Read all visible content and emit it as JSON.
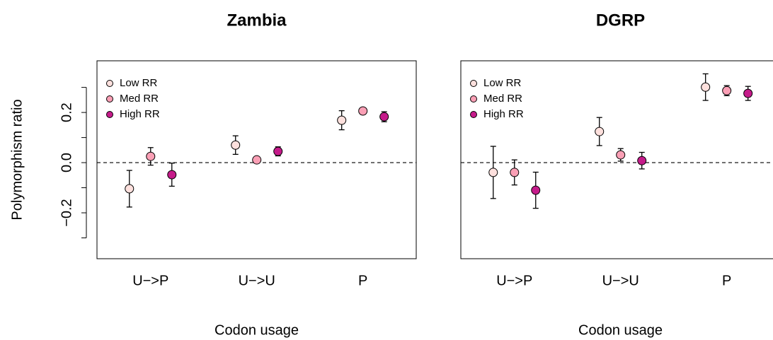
{
  "chart_data": [
    {
      "type": "point",
      "title": "Zambia",
      "xlabel": "Codon usage",
      "ylabel": "Polymorphism ratio",
      "categories": [
        "U−>P",
        "U−>U",
        "P"
      ],
      "series": [
        {
          "name": "Low RR",
          "color": "#fde0dd",
          "values": [
            -0.104,
            0.07,
            0.169
          ],
          "errors": [
            0.073,
            0.037,
            0.038
          ]
        },
        {
          "name": "Med RR",
          "color": "#fa9fb5",
          "values": [
            0.025,
            0.011,
            0.206
          ],
          "errors": [
            0.035,
            0.01,
            0.01
          ]
        },
        {
          "name": "High RR",
          "color": "#c51b8a",
          "values": [
            -0.048,
            0.045,
            0.183
          ],
          "errors": [
            0.046,
            0.018,
            0.02
          ]
        }
      ],
      "ylim": [
        -0.383,
        0.406
      ],
      "yticks": [
        {
          "value": -0.2,
          "label": "−0.2"
        },
        {
          "value": 0,
          "label": "0.0"
        },
        0.2
      ],
      "yticks_minor": [
        -0.3,
        -0.1,
        0.1,
        0.3
      ],
      "reference_line": 0,
      "legend": "topleft"
    },
    {
      "type": "point",
      "title": "DGRP",
      "xlabel": "Codon usage",
      "categories": [
        "U−>P",
        "U−>U",
        "P"
      ],
      "series": [
        {
          "name": "Low RR",
          "color": "#fde0dd",
          "values": [
            -0.039,
            0.124,
            0.301
          ],
          "errors": [
            0.104,
            0.056,
            0.053
          ]
        },
        {
          "name": "Med RR",
          "color": "#fa9fb5",
          "values": [
            -0.039,
            0.031,
            0.287
          ],
          "errors": [
            0.05,
            0.025,
            0.02
          ]
        },
        {
          "name": "High RR",
          "color": "#c51b8a",
          "values": [
            -0.11,
            0.008,
            0.276
          ],
          "errors": [
            0.072,
            0.033,
            0.028
          ]
        }
      ],
      "ylim": [
        -0.383,
        0.406
      ],
      "reference_line": 0,
      "legend": "topleft"
    }
  ]
}
